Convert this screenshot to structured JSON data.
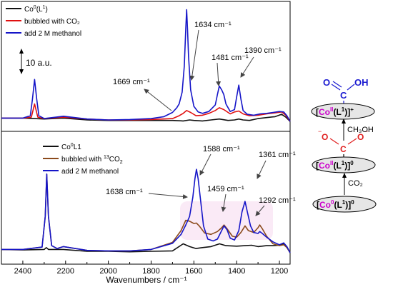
{
  "chart_data": [
    {
      "type": "line",
      "panel": "top",
      "xlabel": "Wavenumbers  / cm⁻¹",
      "xlim": [
        2500,
        1150
      ],
      "xticks": [
        2400,
        2200,
        2000,
        1800,
        1600,
        1400,
        1200
      ],
      "ylim": [
        0,
        25
      ],
      "grid": false,
      "legend_position": "top-left",
      "scale_bar_label": "10 a.u.",
      "series": [
        {
          "name_base": "Co",
          "name_sup": "0",
          "name_after": "(L",
          "name_sup2": "1",
          "name_end": ")",
          "color": "#111111",
          "x": [
            2500,
            2400,
            2345,
            2300,
            2210,
            2100,
            2000,
            1900,
            1800,
            1700,
            1650,
            1620,
            1600,
            1560,
            1520,
            1481,
            1440,
            1410,
            1390,
            1370,
            1340,
            1300,
            1260,
            1220,
            1190,
            1170,
            1150
          ],
          "y": [
            1.0,
            1.0,
            0.9,
            0.8,
            1.0,
            0.6,
            0.5,
            0.5,
            0.5,
            0.5,
            0.4,
            0.6,
            0.5,
            0.4,
            0.6,
            0.8,
            0.5,
            0.6,
            0.8,
            0.6,
            0.5,
            0.9,
            1.1,
            1.3,
            1.8,
            1.2,
            0.3
          ]
        },
        {
          "name": "bubbled with CO₂",
          "color": "#e01010",
          "x": [
            2500,
            2400,
            2360,
            2345,
            2330,
            2300,
            2210,
            2100,
            2000,
            1900,
            1800,
            1700,
            1669,
            1650,
            1634,
            1615,
            1590,
            1560,
            1530,
            1500,
            1481,
            1460,
            1430,
            1410,
            1390,
            1370,
            1340,
            1300,
            1260,
            1220,
            1190,
            1170,
            1150
          ],
          "y": [
            1.0,
            1.0,
            1.2,
            4.0,
            1.2,
            0.9,
            1.2,
            0.8,
            0.6,
            0.6,
            0.7,
            0.9,
            1.5,
            2.0,
            2.6,
            2.2,
            1.5,
            1.6,
            2.0,
            2.6,
            3.2,
            2.8,
            1.9,
            2.3,
            2.5,
            1.9,
            1.5,
            1.6,
            1.9,
            2.1,
            2.3,
            1.6,
            0.3
          ]
        },
        {
          "name": "add 2 M methanol",
          "color": "#1515c8",
          "x": [
            2500,
            2400,
            2365,
            2355,
            2345,
            2335,
            2325,
            2300,
            2210,
            2100,
            2000,
            1900,
            1800,
            1740,
            1700,
            1680,
            1669,
            1655,
            1645,
            1638,
            1634,
            1630,
            1625,
            1615,
            1600,
            1580,
            1560,
            1530,
            1500,
            1490,
            1481,
            1470,
            1460,
            1450,
            1430,
            1410,
            1400,
            1390,
            1380,
            1370,
            1350,
            1320,
            1290,
            1260,
            1230,
            1200,
            1180,
            1165,
            1150
          ],
          "y": [
            1.0,
            1.0,
            1.5,
            5.0,
            9.2,
            5.0,
            1.5,
            0.9,
            1.4,
            0.8,
            0.6,
            0.7,
            0.9,
            1.3,
            2.2,
            3.2,
            4.0,
            6.5,
            12.0,
            20.0,
            24.0,
            20.0,
            14.0,
            7.0,
            3.5,
            2.3,
            2.0,
            2.4,
            3.8,
            6.0,
            7.8,
            7.0,
            6.0,
            4.0,
            2.4,
            2.8,
            5.5,
            8.0,
            5.0,
            2.6,
            1.8,
            1.6,
            1.9,
            2.0,
            2.2,
            2.4,
            2.3,
            1.5,
            0.3
          ]
        }
      ],
      "annotations": [
        "1669 cm⁻¹",
        "1634 cm⁻¹",
        "1481 cm⁻¹",
        "1390 cm⁻¹"
      ],
      "legend": [
        {
          "base": "Co",
          "sup": "0",
          "after": "(L",
          "sup2": "1",
          "end": ")"
        },
        {
          "base": "bubbled with CO₂"
        },
        {
          "base": "add 2 M methanol"
        }
      ]
    },
    {
      "type": "line",
      "panel": "bottom",
      "xlim": [
        2500,
        1150
      ],
      "ylim": [
        0,
        25
      ],
      "grid": false,
      "legend_position": "top-left",
      "series": [
        {
          "name": "Co0L1",
          "color": "#111111",
          "x": [
            2500,
            2400,
            2300,
            2290,
            2280,
            2210,
            2100,
            2000,
            1900,
            1800,
            1700,
            1650,
            1620,
            1590,
            1560,
            1520,
            1480,
            1450,
            1400,
            1361,
            1330,
            1300,
            1260,
            1230,
            1200,
            1180,
            1165,
            1150
          ],
          "y": [
            1.0,
            0.9,
            1.0,
            1.4,
            1.0,
            1.0,
            0.6,
            0.6,
            0.5,
            0.6,
            0.7,
            2.2,
            1.6,
            1.2,
            1.4,
            1.6,
            2.2,
            1.8,
            1.7,
            1.8,
            1.9,
            1.6,
            1.8,
            1.8,
            1.9,
            2.2,
            1.5,
            0.3
          ]
        },
        {
          "name_base": "bubbled with ",
          "name_sup": "13",
          "name_after": "CO",
          "name_sub": "2",
          "color": "#8b4a1c",
          "x": [
            2500,
            2400,
            2310,
            2295,
            2288,
            2280,
            2265,
            2240,
            2210,
            2100,
            2000,
            1900,
            1800,
            1700,
            1660,
            1638,
            1620,
            1600,
            1588,
            1575,
            1550,
            1520,
            1490,
            1470,
            1459,
            1445,
            1420,
            1400,
            1380,
            1361,
            1345,
            1320,
            1300,
            1292,
            1280,
            1260,
            1230,
            1200,
            1180,
            1165,
            1150
          ],
          "y": [
            1.0,
            1.0,
            1.5,
            8.0,
            17.0,
            8.0,
            1.8,
            1.2,
            1.6,
            0.8,
            0.7,
            0.7,
            1.0,
            2.5,
            5.0,
            7.2,
            7.0,
            6.5,
            6.6,
            6.0,
            4.5,
            4.2,
            4.8,
            5.6,
            6.2,
            5.4,
            3.8,
            3.6,
            4.6,
            6.0,
            5.0,
            4.6,
            5.6,
            6.2,
            5.4,
            3.8,
            2.2,
            1.8,
            2.0,
            1.4,
            0.3
          ]
        },
        {
          "name": "add 2 M methanol",
          "color": "#1515c8",
          "x": [
            2500,
            2400,
            2310,
            2295,
            2288,
            2280,
            2265,
            2240,
            2210,
            2100,
            2000,
            1900,
            1800,
            1700,
            1660,
            1640,
            1620,
            1605,
            1595,
            1588,
            1580,
            1570,
            1555,
            1535,
            1510,
            1490,
            1470,
            1459,
            1445,
            1430,
            1410,
            1390,
            1375,
            1361,
            1350,
            1335,
            1320,
            1300,
            1292,
            1280,
            1260,
            1230,
            1200,
            1180,
            1165,
            1150
          ],
          "y": [
            1.0,
            1.0,
            1.5,
            8.0,
            17.0,
            8.0,
            1.8,
            1.2,
            1.6,
            0.8,
            0.7,
            0.7,
            1.0,
            2.3,
            4.2,
            6.0,
            8.0,
            12.0,
            16.0,
            18.0,
            16.0,
            12.0,
            6.0,
            3.2,
            2.8,
            3.2,
            5.0,
            6.0,
            5.2,
            3.4,
            3.0,
            5.0,
            9.0,
            11.2,
            9.0,
            6.0,
            4.6,
            4.4,
            4.8,
            4.4,
            3.6,
            2.6,
            2.0,
            2.4,
            1.6,
            0.3
          ]
        }
      ],
      "annotations": [
        "1638 cm⁻¹",
        "1588 cm⁻¹",
        "1459 cm⁻¹",
        "1361 cm⁻¹",
        "1292 cm⁻¹"
      ],
      "legend": [
        {
          "base": "Co",
          "sup": "0",
          "after": "L1"
        },
        {
          "base": "bubbled with ",
          "sup": "13",
          "after": "CO",
          "sub": "2"
        },
        {
          "base": "add 2 M methanol"
        }
      ]
    }
  ],
  "scheme": {
    "top_complex": {
      "bracket_open": "[",
      "metal": "Co",
      "ox": "II",
      "ligand": "(L",
      "lig_sup": "1",
      "lig_close": ")]",
      "charge": "+"
    },
    "middle_complex": {
      "bracket_open": "[",
      "metal": "Co",
      "ox": "II",
      "ligand": "(L",
      "lig_sup": "1",
      "lig_close": ")]",
      "charge": "0"
    },
    "bottom_complex": {
      "bracket_open": "[",
      "metal": "Co",
      "ox": "0",
      "ligand": "(L",
      "lig_sup": "1",
      "lig_close": ")]",
      "charge": "0"
    },
    "carboxyl": {
      "o": "O",
      "c": "C",
      "oh": "OH"
    },
    "co2_anion": {
      "o_left": "O",
      "o_right": "O",
      "c": "C",
      "minus": "−"
    },
    "step_upper": "CH₃OH",
    "step_lower": "CO₂",
    "colors": {
      "blue": "#1a1ad0",
      "red": "#e02020",
      "magenta": "#cc00cc",
      "ellipse": "#d8d8d8"
    }
  }
}
